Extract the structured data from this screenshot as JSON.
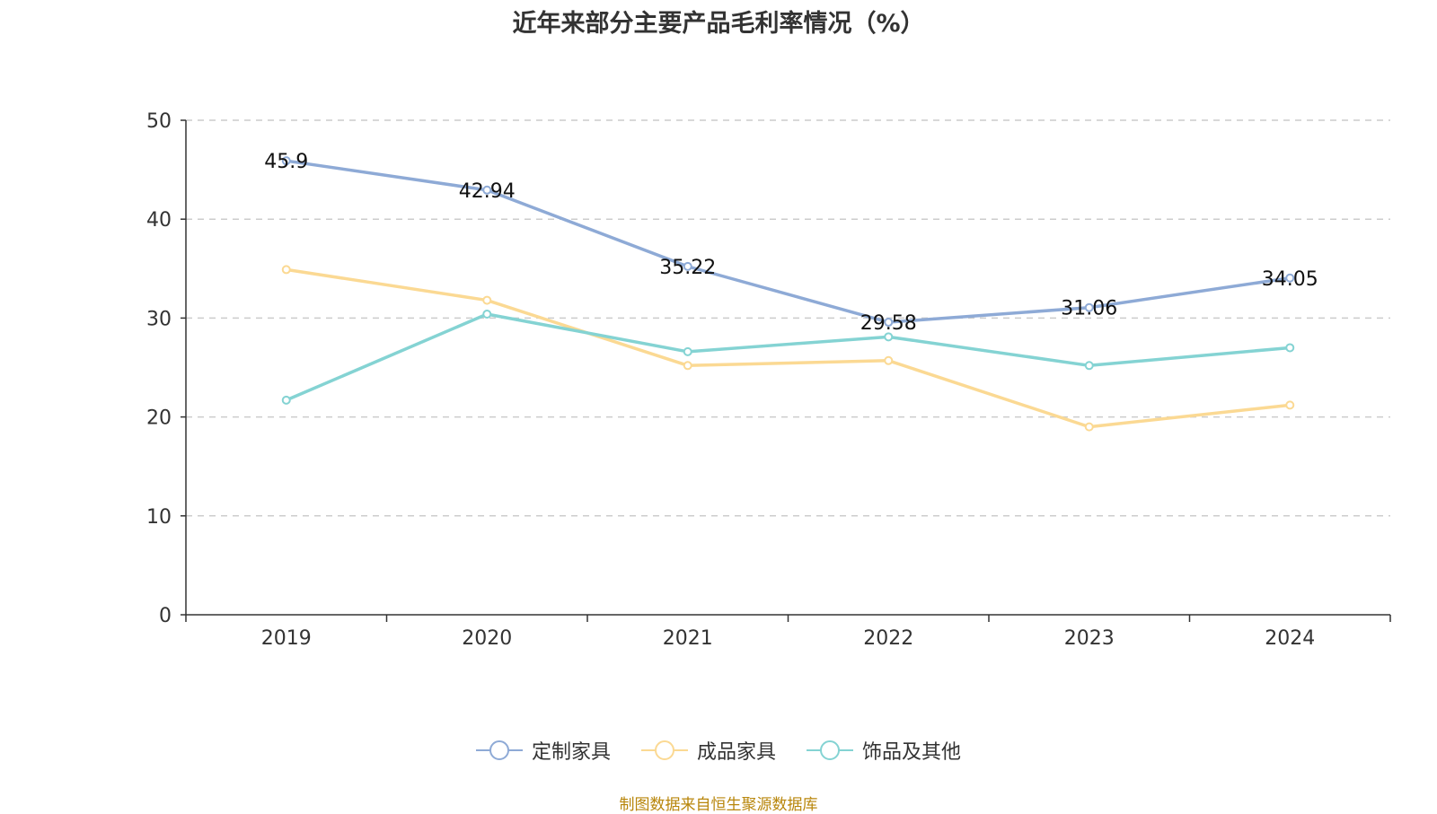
{
  "chart_data": {
    "type": "line",
    "title": "近年来部分主要产品毛利率情况（%）",
    "categories": [
      "2019",
      "2020",
      "2021",
      "2022",
      "2023",
      "2024"
    ],
    "ylim": [
      0,
      50
    ],
    "yticks": [
      "0",
      "10",
      "20",
      "30",
      "40",
      "50"
    ],
    "grid": true,
    "legend_position": "bottom",
    "series": [
      {
        "name": "定制家具",
        "color": "#8eaad6",
        "values": [
          45.9,
          42.94,
          35.22,
          29.58,
          31.06,
          34.05
        ],
        "labels": [
          "45.9",
          "42.94",
          "35.22",
          "29.58",
          "31.06",
          "34.05"
        ]
      },
      {
        "name": "成品家具",
        "color": "#fbd993",
        "values": [
          34.9,
          31.8,
          25.2,
          25.7,
          19.0,
          21.2
        ]
      },
      {
        "name": "饰品及其他",
        "color": "#84d3d3",
        "values": [
          21.7,
          30.4,
          26.6,
          28.1,
          25.2,
          27.0
        ]
      }
    ]
  },
  "source_note": "制图数据来自恒生聚源数据库"
}
